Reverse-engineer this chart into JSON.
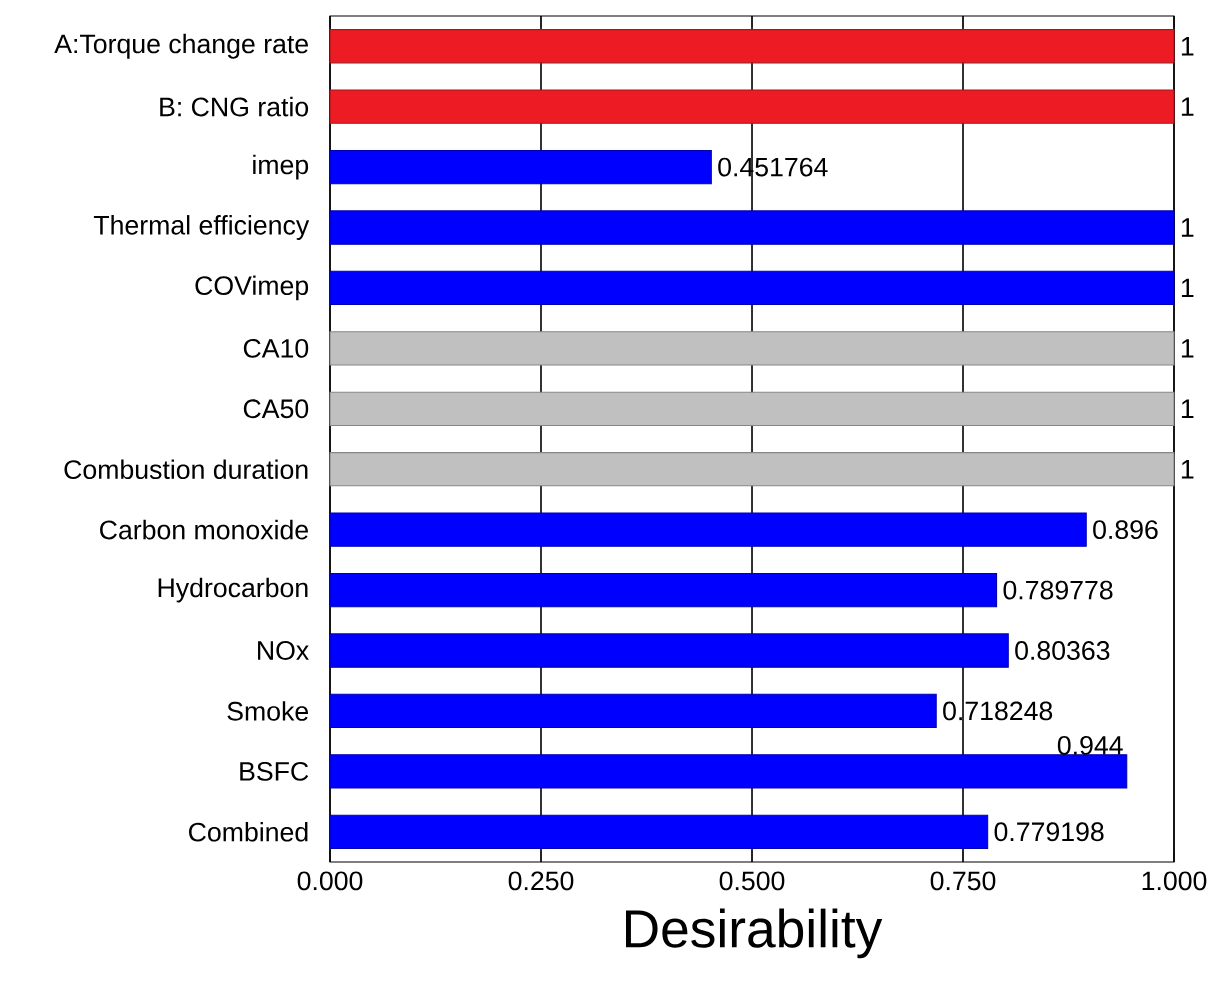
{
  "chart_data": {
    "type": "bar",
    "orientation": "horizontal",
    "xlabel": "Desirability",
    "categories": [
      "A:Torque change rate",
      "B: CNG ratio",
      "imep",
      "Thermal efficiency",
      "COVimep",
      "CA10",
      "CA50",
      "Combustion duration",
      "Carbon monoxide",
      "Hydrocarbon",
      "NOx",
      "Smoke",
      "BSFC",
      "Combined"
    ],
    "values": [
      1,
      1,
      0.451764,
      1,
      1,
      1,
      1,
      1,
      0.896,
      0.789778,
      0.80363,
      0.718248,
      0.944,
      0.779198
    ],
    "value_labels": [
      "1",
      "1",
      "0.451764",
      "1",
      "1",
      "1",
      "1",
      "1",
      "0.896",
      "0.789778",
      "0.80363",
      "0.718248",
      "0.944",
      "0.779198"
    ],
    "colors": [
      "#ed1c24",
      "#ed1c24",
      "#0000ff",
      "#0000ff",
      "#0000ff",
      "#c0c0c0",
      "#c0c0c0",
      "#c0c0c0",
      "#0000ff",
      "#0000ff",
      "#0000ff",
      "#0000ff",
      "#0000ff",
      "#0000ff"
    ],
    "xlim": [
      0,
      1
    ],
    "xticks": [
      {
        "value": 0,
        "label": "0.000"
      },
      {
        "value": 0.25,
        "label": "0.250"
      },
      {
        "value": 0.5,
        "label": "0.500"
      },
      {
        "value": 0.75,
        "label": "0.750"
      },
      {
        "value": 1,
        "label": "1.000"
      }
    ],
    "grid": "x"
  }
}
